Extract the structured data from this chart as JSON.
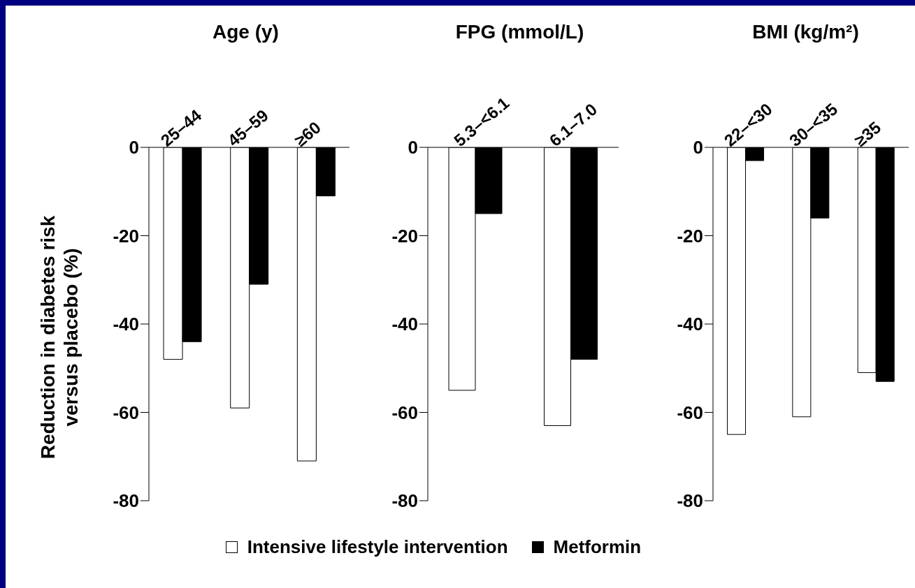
{
  "chart_data": [
    {
      "type": "bar",
      "title": "Age (y)",
      "ylabel": "Reduction in diabetes risk versus placebo (%)",
      "categories": [
        "25–44",
        "45–59",
        "≥60"
      ],
      "ylim": [
        -80,
        0
      ],
      "yticks": [
        0,
        -20,
        -40,
        -60,
        -80
      ],
      "series": [
        {
          "color": "#ffffff",
          "values": [
            -48,
            -59,
            -71
          ]
        },
        {
          "color": "#000000",
          "values": [
            -44,
            -31,
            -11
          ]
        }
      ]
    },
    {
      "type": "bar",
      "title": "FPG (mmol/L)",
      "categories": [
        "5.3–<6.1",
        "6.1–7.0"
      ],
      "ylim": [
        -80,
        0
      ],
      "yticks": [
        0,
        -20,
        -40,
        -60,
        -80
      ],
      "legend": "bottom",
      "series": [
        {
          "name": "Intensive lifestyle intervention",
          "color": "#ffffff",
          "values": [
            -55,
            -63
          ]
        },
        {
          "name": "Metformin",
          "color": "#000000",
          "values": [
            -15,
            -48
          ]
        }
      ]
    },
    {
      "type": "bar",
      "title": "BMI (kg/m²)",
      "categories": [
        "22–<30",
        "30–<35",
        "≥35"
      ],
      "ylim": [
        -80,
        0
      ],
      "yticks": [
        0,
        -20,
        -40,
        -60,
        -80
      ],
      "series": [
        {
          "color": "#ffffff",
          "values": [
            -65,
            -61,
            -51
          ]
        },
        {
          "color": "#000000",
          "values": [
            -3,
            -16,
            -53
          ]
        }
      ]
    }
  ]
}
